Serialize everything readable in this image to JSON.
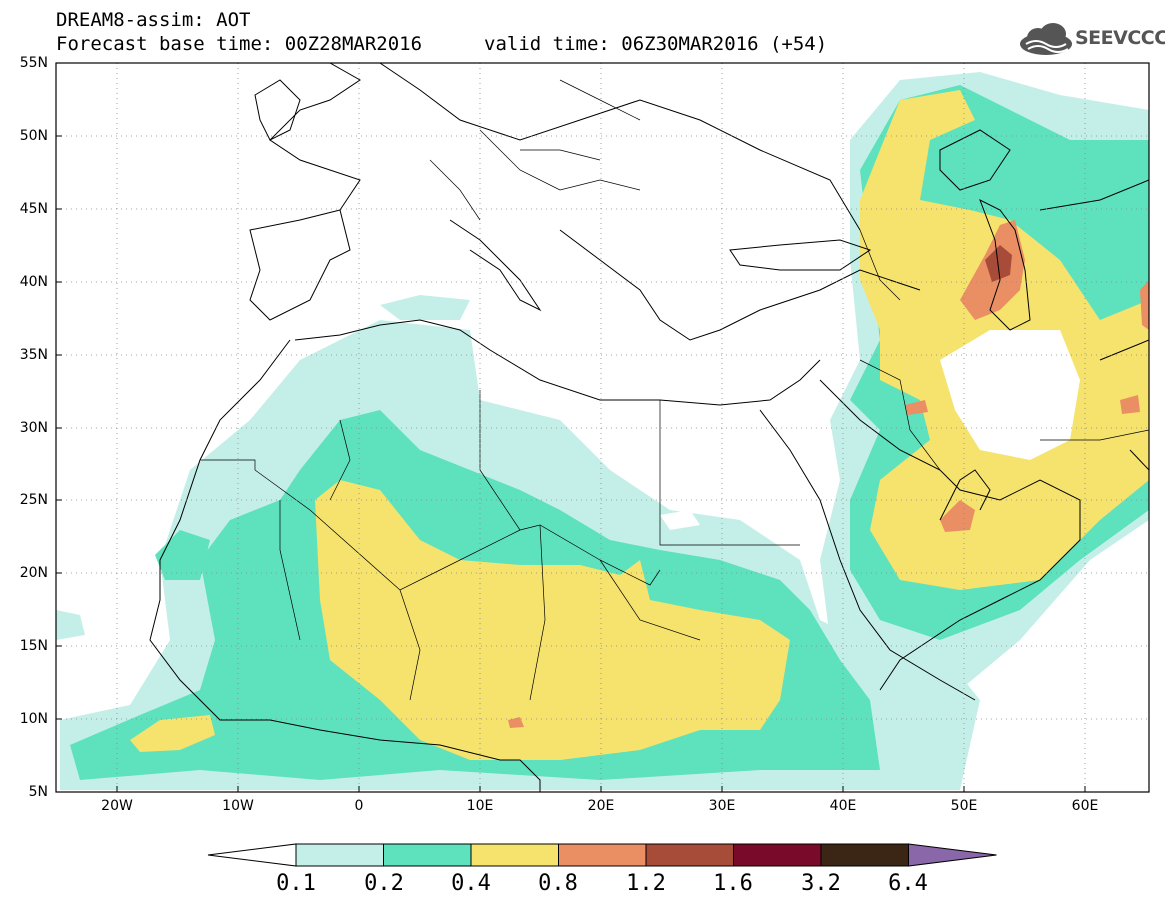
{
  "title_line1": "DREAM8-assim: AOT",
  "title_line2": "Forecast base time: 00Z28MAR2016",
  "valid_time": "valid time: 06Z30MAR2016 (+54)",
  "logo_text": "SEEVCCC",
  "logo_icon": "cloud-icon",
  "map": {
    "lon_range": [
      -25,
      65
    ],
    "lat_range": [
      5,
      55
    ],
    "lat_labels": [
      "55N",
      "50N",
      "45N",
      "40N",
      "35N",
      "30N",
      "25N",
      "20N",
      "15N",
      "10N",
      "5N"
    ],
    "lon_labels": [
      "20W",
      "10W",
      "0",
      "10E",
      "20E",
      "30E",
      "40E",
      "50E",
      "60E"
    ],
    "grid": true
  },
  "colorbar": {
    "labels": [
      "0.1",
      "0.2",
      "0.4",
      "0.8",
      "1.2",
      "1.6",
      "3.2",
      "6.4"
    ],
    "colors": [
      "#ffffff",
      "#c4efe8",
      "#5ee1bd",
      "#f5e36e",
      "#ea8e63",
      "#a84c3a",
      "#7a0a2a",
      "#3b2514",
      "#8a67a8"
    ]
  }
}
